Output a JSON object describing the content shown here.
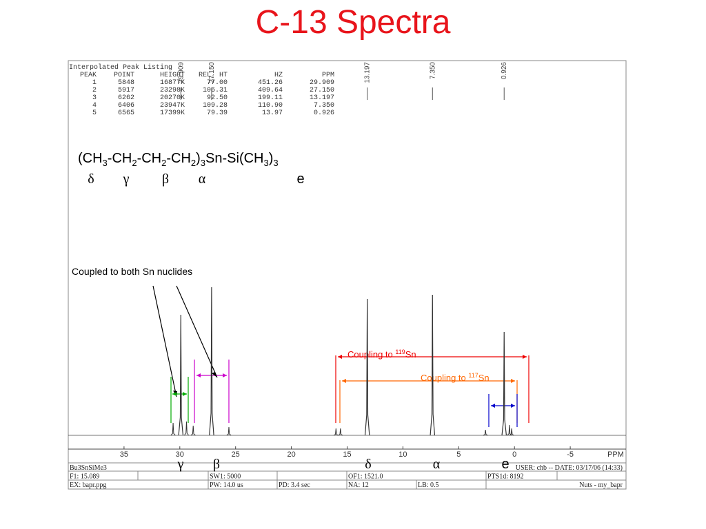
{
  "title": "C-13 Spectra",
  "peak_table": {
    "title": "Interpolated Peak Listing",
    "columns": [
      "PEAK",
      "POINT",
      "HEIGHT",
      "REL. HT",
      "HZ",
      "PPM"
    ],
    "rows": [
      [
        "1",
        "5848",
        "16877K",
        "77.00",
        "451.26",
        "29.909"
      ],
      [
        "2",
        "5917",
        "23298K",
        "106.31",
        "409.64",
        "27.150"
      ],
      [
        "3",
        "6262",
        "20270K",
        "92.50",
        "199.11",
        "13.197"
      ],
      [
        "4",
        "6406",
        "23947K",
        "109.28",
        "110.90",
        "7.350"
      ],
      [
        "5",
        "6565",
        "17399K",
        "79.39",
        "13.97",
        "0.926"
      ]
    ]
  },
  "formula": [
    "(CH",
    "3",
    "-CH",
    "2",
    "-CH",
    "2",
    "-CH",
    "2",
    ")",
    "3",
    "Sn-Si(CH",
    "3",
    ")",
    "3"
  ],
  "formula_labels": [
    "δ",
    "γ",
    "β",
    "α",
    "e"
  ],
  "annotations": {
    "both": "Coupled to both Sn nuclides",
    "sn119": {
      "text": "Coupling to ",
      "isotope": "119",
      "element": "Sn"
    },
    "sn117": {
      "text": "Coupling to ",
      "isotope": "117",
      "element": "Sn"
    }
  },
  "axis_labels": [
    "γ",
    "β",
    "δ",
    "α",
    "e"
  ],
  "chart_data": {
    "type": "spectrum",
    "x": [
      29.909,
      27.15,
      13.197,
      7.35,
      0.926
    ],
    "x_labels": [
      "29.909",
      "27.150",
      "13.197",
      "7.350",
      "0.926"
    ],
    "values": [
      175,
      215,
      198,
      204,
      150
    ],
    "satellite_x": [
      30.6,
      29.4,
      28.8,
      25.6,
      16.0,
      15.6,
      2.6,
      0.45,
      0.25
    ],
    "satellite_values": [
      18,
      20,
      14,
      12,
      10,
      10,
      8,
      15,
      10
    ],
    "xlim": [
      40,
      -10
    ],
    "ylim": [
      0,
      240
    ],
    "xticks": [
      35,
      30,
      25,
      20,
      15,
      10,
      5,
      0,
      -5
    ],
    "xlabel": "PPM",
    "color": "#333333"
  },
  "footer": [
    [
      "Bu3SnSiMe3",
      "USER: chb -- DATE: 03/17/06 (14:33)"
    ],
    [
      "F1: 15.089",
      "SW1: 5000",
      "OF1: 1521.0",
      "PTS1d: 8192"
    ],
    [
      "EX: bapr.ppg",
      "PW: 14.0 us",
      "PD: 3.4  sec",
      "NA: 12",
      "LB: 0.5",
      "Nuts - my_bapr"
    ]
  ]
}
